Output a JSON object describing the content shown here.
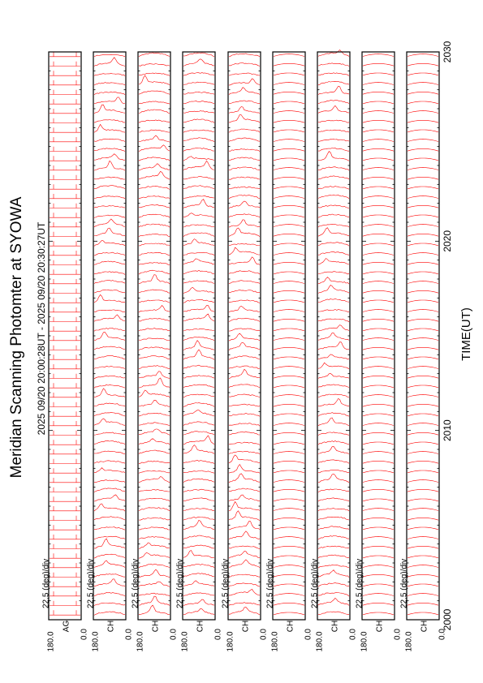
{
  "page": {
    "title": "Meridian Scanning Photomter at SYOWA",
    "time_range": "2025 09/20 20:00:28UT - 2025 09/20 20:30:27UT",
    "xlabel": "TIME(UT)"
  },
  "chart_data": {
    "type": "line",
    "title": "Meridian Scanning Photomter at SYOWA",
    "xlabel": "TIME(UT)",
    "x_range": [
      2000,
      2030
    ],
    "x_ticks": [
      "2000",
      "2010",
      "2020",
      "2030"
    ],
    "y_range": [
      0.0,
      180.0
    ],
    "y_ticks": [
      "180.0",
      "0.0"
    ],
    "panels": [
      {
        "channel": "AG",
        "scale": "22.5 (deg)/div",
        "style": "square"
      },
      {
        "channel": "CH",
        "scale": "22.5 (deg)/div",
        "style": "aurora"
      },
      {
        "channel": "CH",
        "scale": "22.5 (deg)/div",
        "style": "aurora"
      },
      {
        "channel": "CH",
        "scale": "22.5 (deg)/div",
        "style": "aurora"
      },
      {
        "channel": "CH",
        "scale": "22.5 (deg)/div",
        "style": "aurora"
      },
      {
        "channel": "CH",
        "scale": "22.5 (deg)/div",
        "style": "smooth"
      },
      {
        "channel": "CH",
        "scale": "22.5 (deg)/div",
        "style": "aurora"
      },
      {
        "channel": "CH",
        "scale": "22.5 (deg)/div",
        "style": "smooth"
      },
      {
        "channel": "CH",
        "scale": "22.5 (deg)/div",
        "style": "smooth"
      }
    ],
    "scans_per_panel": 60,
    "line_color": "#ff0000",
    "grid": false
  }
}
